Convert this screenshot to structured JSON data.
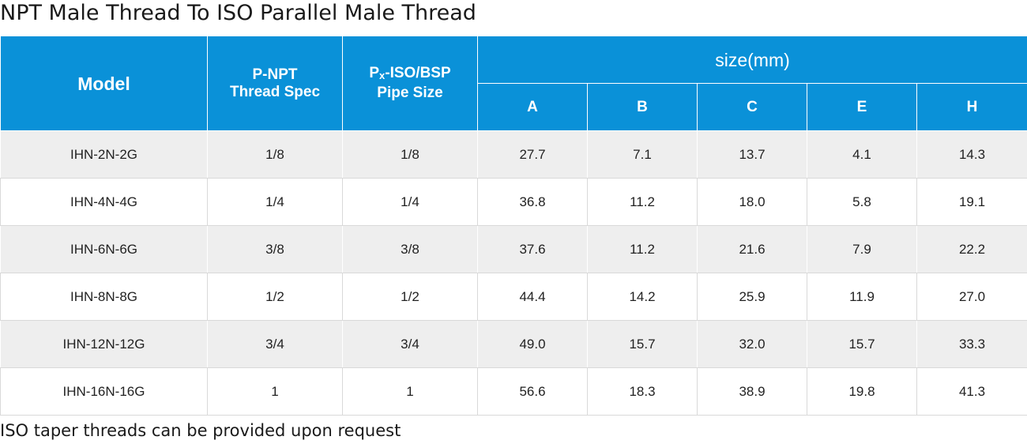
{
  "title": "NPT Male Thread To ISO Parallel Male Thread",
  "table": {
    "header": {
      "model": "Model",
      "pnpt_line1": "P-NPT",
      "pnpt_line2": "Thread Spec",
      "px_prefix": "P",
      "px_sub": "x",
      "px_rest": "-ISO/BSP",
      "px_line2": "Pipe Size",
      "size_group": "size(mm)",
      "dims": [
        "A",
        "B",
        "C",
        "E",
        "H"
      ]
    },
    "rows": [
      [
        "IHN-2N-2G",
        "1/8",
        "1/8",
        "27.7",
        "7.1",
        "13.7",
        "4.1",
        "14.3"
      ],
      [
        "IHN-4N-4G",
        "1/4",
        "1/4",
        "36.8",
        "11.2",
        "18.0",
        "5.8",
        "19.1"
      ],
      [
        "IHN-6N-6G",
        "3/8",
        "3/8",
        "37.6",
        "11.2",
        "21.6",
        "7.9",
        "22.2"
      ],
      [
        "IHN-8N-8G",
        "1/2",
        "1/2",
        "44.4",
        "14.2",
        "25.9",
        "11.9",
        "27.0"
      ],
      [
        "IHN-12N-12G",
        "3/4",
        "3/4",
        "49.0",
        "15.7",
        "32.0",
        "15.7",
        "33.3"
      ],
      [
        "IHN-16N-16G",
        "1",
        "1",
        "56.6",
        "18.3",
        "38.9",
        "19.8",
        "41.3"
      ]
    ]
  },
  "footnote": "ISO taper threads can be provided upon request",
  "colors": {
    "header_bg": "#0a91d8",
    "row_alt_bg": "#eeeeee"
  }
}
